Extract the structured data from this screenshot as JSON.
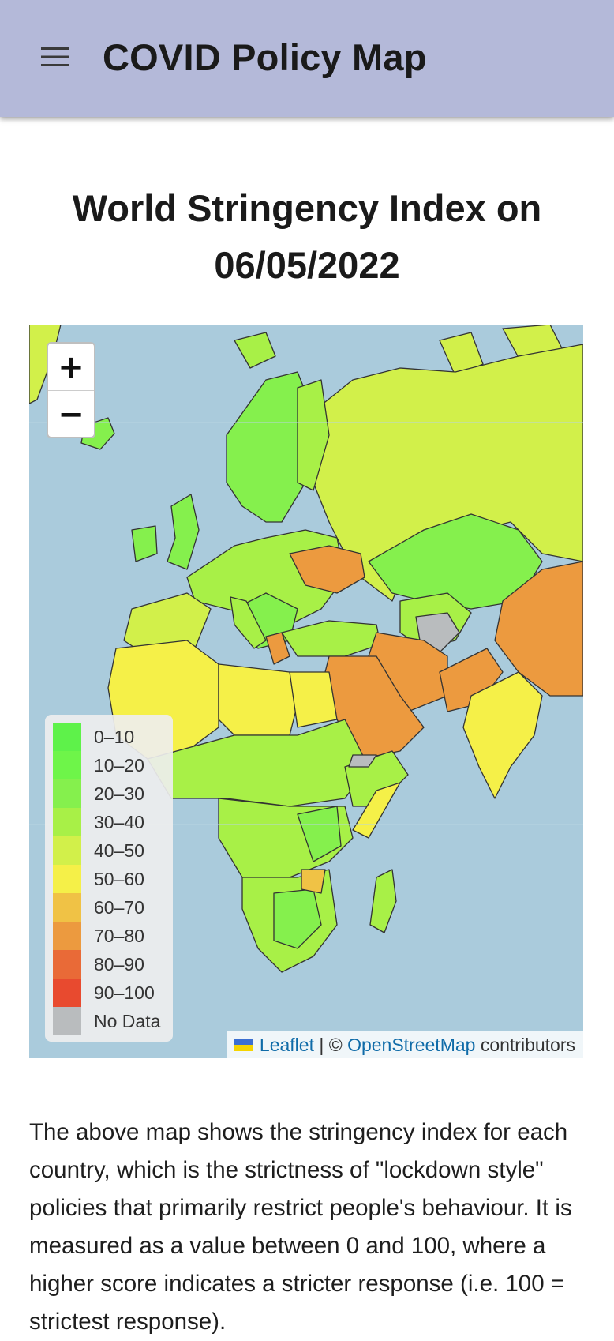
{
  "header": {
    "title": "COVID Policy Map",
    "menu_icon": "hamburger-menu-icon"
  },
  "page": {
    "heading": "World Stringency Index on 06/05/2022",
    "description": "The above map shows the stringency index for each country, which is the strictness of \"lockdown style\" policies that primarily restrict people's behaviour. It is measured as a value between 0 and 100, where a higher score indicates a stricter response (i.e. 100 = strictest response)."
  },
  "map": {
    "zoom_in_label": "+",
    "zoom_out_label": "−",
    "ocean_color": "#aacbdc",
    "legend": [
      {
        "label": "0–10",
        "color": "#5ef24a"
      },
      {
        "label": "10–20",
        "color": "#6ef549"
      },
      {
        "label": "20–30",
        "color": "#85f04d"
      },
      {
        "label": "30–40",
        "color": "#a8f047"
      },
      {
        "label": "40–50",
        "color": "#d2f04a"
      },
      {
        "label": "50–60",
        "color": "#f5f048"
      },
      {
        "label": "60–70",
        "color": "#f0c245"
      },
      {
        "label": "70–80",
        "color": "#ec9a3f"
      },
      {
        "label": "80–90",
        "color": "#e96a37"
      },
      {
        "label": "90–100",
        "color": "#e84a2f"
      },
      {
        "label": "No Data",
        "color": "#b9bcbe"
      }
    ],
    "attribution": {
      "leaflet_label": "Leaflet",
      "separator": " | © ",
      "osm_label": "OpenStreetMap",
      "suffix": " contributors"
    }
  }
}
